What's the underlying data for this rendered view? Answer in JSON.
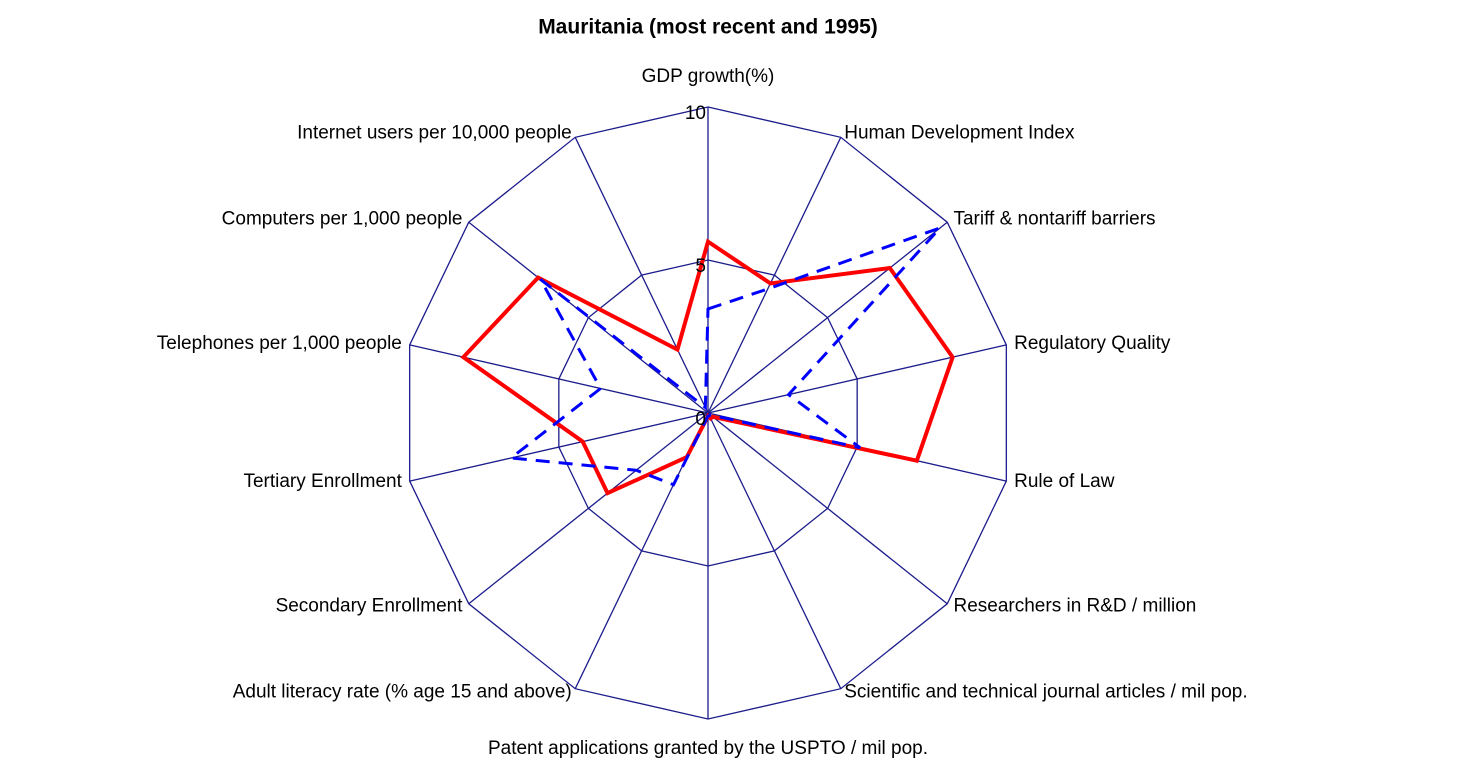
{
  "chart_data": {
    "type": "radar",
    "title": "Mauritania (most recent and 1995)",
    "categories": [
      "GDP growth(%)",
      "Human Development Index",
      "Tariff & nontariff barriers",
      "Regulatory Quality",
      "Rule of Law",
      "Researchers in R&D / million",
      "Scientific and technical journal articles / mil pop.",
      "Patent applications granted by the USPTO / mil pop.",
      "Adult literacy rate (% age 15 and above)",
      "Secondary Enrollment",
      "Tertiary  Enrollment",
      "Telephones per 1,000 people",
      "Computers per 1,000 people",
      "Internet users per 10,000 people"
    ],
    "series": [
      {
        "color": "#ff0000",
        "line_style": "solid",
        "values": [
          5.6,
          4.7,
          7.6,
          8.2,
          7.0,
          0.2,
          0.2,
          0.1,
          1.6,
          4.2,
          4.2,
          8.2,
          7.1,
          2.3
        ]
      },
      {
        "color": "#0000ff",
        "line_style": "dashed",
        "values": [
          3.4,
          4.5,
          9.7,
          2.7,
          5.1,
          0.1,
          0.1,
          0.1,
          2.6,
          3.0,
          6.6,
          3.6,
          7.0,
          0.2
        ]
      }
    ],
    "ylim": [
      0,
      10
    ],
    "yticks": [
      0,
      5,
      10
    ],
    "grid_color": "#1c1c8c"
  }
}
